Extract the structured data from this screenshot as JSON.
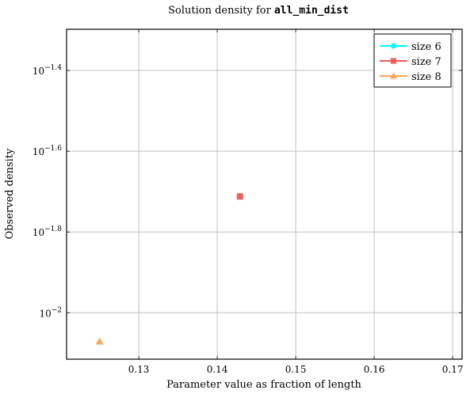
{
  "chart_data": {
    "type": "scatter",
    "title_prefix": "Solution density for ",
    "title_code": "all_min_dist",
    "xlabel": "Parameter value as fraction of length",
    "ylabel": "Observed density",
    "xlim": [
      0.1208,
      0.1712
    ],
    "y_scale": "log10",
    "ylim_log10": [
      -2.115,
      -1.298
    ],
    "x_ticks": [
      {
        "value": 0.13,
        "label": "0.13"
      },
      {
        "value": 0.14,
        "label": "0.14"
      },
      {
        "value": 0.15,
        "label": "0.15"
      },
      {
        "value": 0.16,
        "label": "0.16"
      },
      {
        "value": 0.17,
        "label": "0.17"
      }
    ],
    "y_ticks": [
      {
        "log10": -2.0,
        "base": "10",
        "exp": "−2"
      },
      {
        "log10": -1.8,
        "base": "10",
        "exp": "−1.8"
      },
      {
        "log10": -1.6,
        "base": "10",
        "exp": "−1.6"
      },
      {
        "log10": -1.4,
        "base": "10",
        "exp": "−1.4"
      }
    ],
    "grid": true,
    "legend_position": "top-right",
    "series": [
      {
        "name": "size 6",
        "color": "#00ffff",
        "marker": "circle",
        "points": []
      },
      {
        "name": "size 7",
        "color": "#f25b5b",
        "marker": "square",
        "points": [
          {
            "x": 0.1429,
            "log10_y": -1.712
          }
        ]
      },
      {
        "name": "size 8",
        "color": "#f7a75a",
        "marker": "triangle",
        "points": [
          {
            "x": 0.125,
            "log10_y": -2.071
          }
        ]
      }
    ]
  }
}
